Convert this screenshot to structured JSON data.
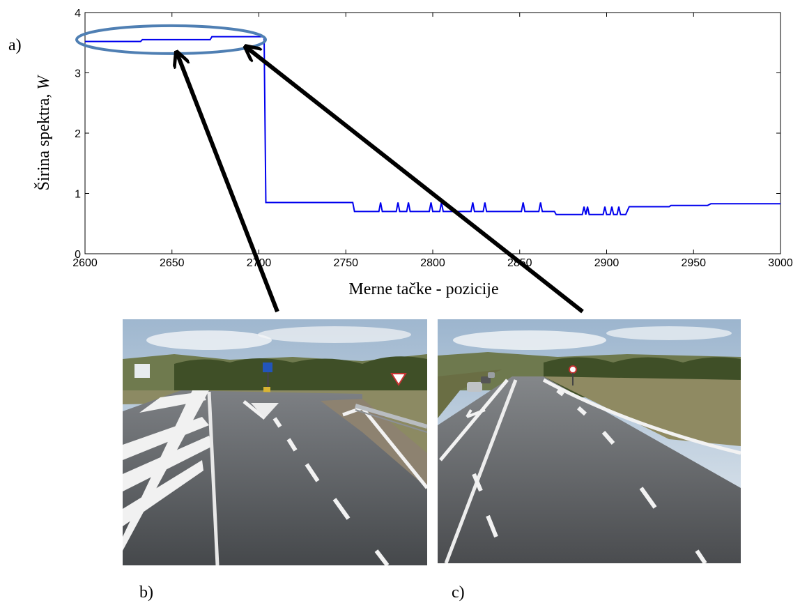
{
  "panel_labels": {
    "a": "a)",
    "b": "b)",
    "c": "c)"
  },
  "colors": {
    "line": "#0000ee",
    "ellipse": "#4f7fb3",
    "arrow": "#000000"
  },
  "chart_data": {
    "type": "line",
    "xlabel": "Merne tačke - pozicije",
    "ylabel_main": "Širina spektra, ",
    "ylabel_var": "W",
    "xlim": [
      2600,
      3000
    ],
    "ylim": [
      0,
      4
    ],
    "xticks": [
      2600,
      2650,
      2700,
      2750,
      2800,
      2850,
      2900,
      2950,
      3000
    ],
    "yticks": [
      0,
      1,
      2,
      3,
      4
    ],
    "grid": false,
    "series": [
      {
        "x": [
          2600,
          2632,
          2633,
          2672,
          2673,
          2703,
          2704,
          2754,
          2755,
          2769,
          2770,
          2771,
          2779,
          2780,
          2781,
          2785,
          2786,
          2787,
          2798,
          2799,
          2800,
          2804,
          2805,
          2806,
          2822,
          2823,
          2824,
          2829,
          2830,
          2831,
          2851,
          2852,
          2853,
          2861,
          2862,
          2863,
          2870,
          2871,
          2886,
          2887,
          2888,
          2889,
          2890,
          2891,
          2898,
          2899,
          2900,
          2902,
          2903,
          2904,
          2906,
          2907,
          2908,
          2911,
          2913,
          2936,
          2937,
          2958,
          2960,
          3000
        ],
        "y": [
          3.52,
          3.52,
          3.55,
          3.55,
          3.6,
          3.6,
          0.85,
          0.85,
          0.7,
          0.7,
          0.85,
          0.7,
          0.7,
          0.85,
          0.7,
          0.7,
          0.85,
          0.7,
          0.7,
          0.85,
          0.7,
          0.7,
          0.85,
          0.7,
          0.7,
          0.85,
          0.7,
          0.7,
          0.85,
          0.7,
          0.7,
          0.85,
          0.7,
          0.7,
          0.85,
          0.7,
          0.7,
          0.65,
          0.65,
          0.78,
          0.65,
          0.78,
          0.65,
          0.65,
          0.65,
          0.78,
          0.65,
          0.65,
          0.78,
          0.65,
          0.65,
          0.78,
          0.65,
          0.65,
          0.78,
          0.78,
          0.8,
          0.8,
          0.83,
          0.83
        ]
      }
    ],
    "highlight": {
      "x_range": [
        2600,
        2703
      ],
      "y_center": 3.55
    },
    "arrows": [
      {
        "from_photo": "b",
        "to": [
          2653,
          3.32
        ]
      },
      {
        "from_photo": "c",
        "to": [
          2693,
          3.42
        ]
      }
    ]
  },
  "photos": {
    "b": {
      "description_icon": "road-junction-photo"
    },
    "c": {
      "description_icon": "road-curve-photo"
    }
  }
}
